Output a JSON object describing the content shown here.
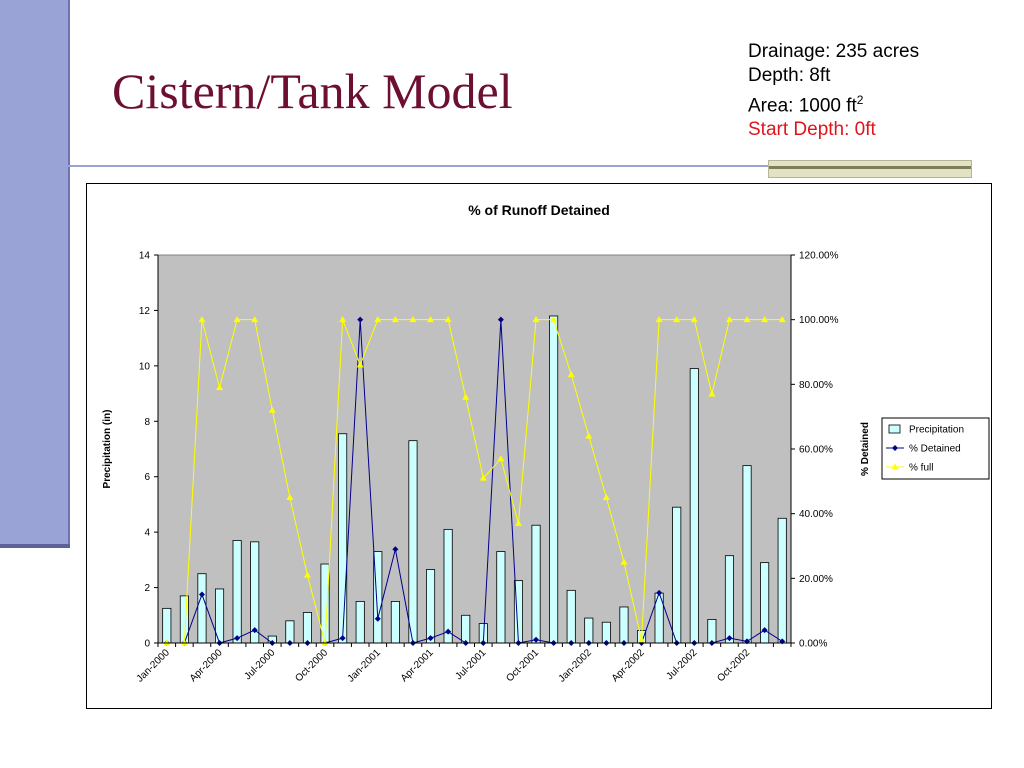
{
  "slide": {
    "title": "Cistern/Tank Model",
    "info": {
      "drainage": "Drainage:  235 acres",
      "depth": "Depth: 8ft",
      "area_prefix": "Area: 1000 ft",
      "area_sup": "2",
      "start_depth": "Start Depth: 0ft"
    },
    "colors": {
      "title": "#6d0f33",
      "accent_bar": "#9aa3d6",
      "start_depth": "#e0141c"
    }
  },
  "chart_data": {
    "type": "bar",
    "title": "% of Runoff Detained",
    "ylabel": "Precipitation (in)",
    "y2label": "% Detained",
    "ylim": [
      0,
      14
    ],
    "y2lim": [
      0,
      1.2
    ],
    "y_ticks": [
      "0",
      "2",
      "4",
      "6",
      "8",
      "10",
      "12",
      "14"
    ],
    "y2_ticks": [
      "0.00%",
      "20.00%",
      "40.00%",
      "60.00%",
      "80.00%",
      "100.00%",
      "120.00%"
    ],
    "x_tick_labels": [
      "Jan-2000",
      "Apr-2000",
      "Jul-2000",
      "Oct-2000",
      "Jan-2001",
      "Apr-2001",
      "Jul-2001",
      "Oct-2001",
      "Jan-2002",
      "Apr-2002",
      "Jul-2002",
      "Oct-2002"
    ],
    "grid": false,
    "legend_position": "right",
    "plot_background": "#c0c0c0",
    "series": [
      {
        "name": "Precipitation",
        "kind": "bar",
        "axis": "left",
        "color": "#ccffff",
        "values": [
          1.25,
          1.7,
          2.5,
          1.95,
          3.7,
          3.65,
          0.25,
          0.8,
          1.1,
          2.85,
          7.55,
          1.5,
          3.3,
          1.5,
          7.3,
          2.65,
          4.1,
          1.0,
          0.7,
          3.3,
          2.25,
          4.25,
          11.8,
          1.9,
          0.9,
          0.75,
          1.3,
          0.45,
          1.8,
          4.9,
          9.9,
          0.85,
          3.15,
          6.4,
          2.9,
          4.5
        ]
      },
      {
        "name": "% Detained",
        "kind": "line",
        "axis": "right",
        "color": "#00008b",
        "values": [
          0,
          0,
          0.15,
          0,
          0.015,
          0.04,
          0,
          0,
          0,
          0,
          0.015,
          1.0,
          0.075,
          0.29,
          0,
          0.015,
          0.035,
          0,
          0,
          1.0,
          0,
          0.01,
          0,
          0,
          0,
          0,
          0,
          0,
          0.155,
          0,
          0,
          0,
          0.015,
          0.005,
          0.04,
          0.005
        ]
      },
      {
        "name": "% full",
        "kind": "line",
        "axis": "right",
        "color": "#ffff00",
        "values": [
          0,
          0,
          1.0,
          0.79,
          1.0,
          1.0,
          0.72,
          0.45,
          0.21,
          0,
          1.0,
          0.86,
          1.0,
          1.0,
          1.0,
          1.0,
          1.0,
          0.76,
          0.51,
          0.57,
          0.37,
          1.0,
          1.0,
          0.83,
          0.64,
          0.45,
          0.25,
          0.01,
          1.0,
          1.0,
          1.0,
          0.77,
          1.0,
          1.0,
          1.0,
          1.0
        ]
      }
    ]
  }
}
